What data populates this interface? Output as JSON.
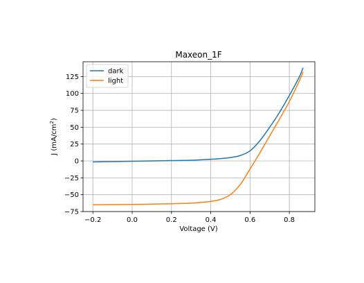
{
  "chart_data": {
    "type": "line",
    "title": "Maxeon_1F",
    "xlabel": "Voltage (V)",
    "ylabel_prefix": "J (mA/cm",
    "ylabel_sup": "2",
    "ylabel_suffix": ")",
    "xlim": [
      -0.25,
      0.93
    ],
    "ylim": [
      -75,
      147
    ],
    "xticks": [
      -0.2,
      0.0,
      0.2,
      0.4,
      0.6,
      0.8
    ],
    "xtick_labels": [
      "−0.2",
      "0.0",
      "0.2",
      "0.4",
      "0.6",
      "0.8"
    ],
    "yticks": [
      -75,
      -50,
      -25,
      0,
      25,
      50,
      75,
      100,
      125
    ],
    "ytick_labels": [
      "−75",
      "−50",
      "−25",
      "0",
      "25",
      "50",
      "75",
      "100",
      "125"
    ],
    "grid": true,
    "legend_position": "top-left",
    "series": [
      {
        "name": "dark",
        "color": "#1f77b4",
        "x": [
          -0.2,
          -0.1,
          0.0,
          0.1,
          0.2,
          0.3,
          0.4,
          0.45,
          0.5,
          0.55,
          0.6,
          0.65,
          0.7,
          0.75,
          0.8,
          0.85,
          0.87
        ],
        "y": [
          -1.5,
          -1.0,
          -0.5,
          0.0,
          0.5,
          1.0,
          2.5,
          3.5,
          5.0,
          8.0,
          15.0,
          30.0,
          50.0,
          72.0,
          97.0,
          124.0,
          138.0
        ]
      },
      {
        "name": "light",
        "color": "#ff7f0e",
        "x": [
          -0.2,
          -0.1,
          0.0,
          0.1,
          0.2,
          0.3,
          0.35,
          0.4,
          0.45,
          0.5,
          0.55,
          0.6,
          0.65,
          0.7,
          0.75,
          0.8,
          0.85,
          0.87
        ],
        "y": [
          -65.0,
          -64.7,
          -64.4,
          -64.0,
          -63.4,
          -62.5,
          -61.5,
          -60.0,
          -57.0,
          -50.0,
          -35.0,
          -12.0,
          12.0,
          37.0,
          62.0,
          88.0,
          118.0,
          132.0
        ]
      }
    ]
  }
}
